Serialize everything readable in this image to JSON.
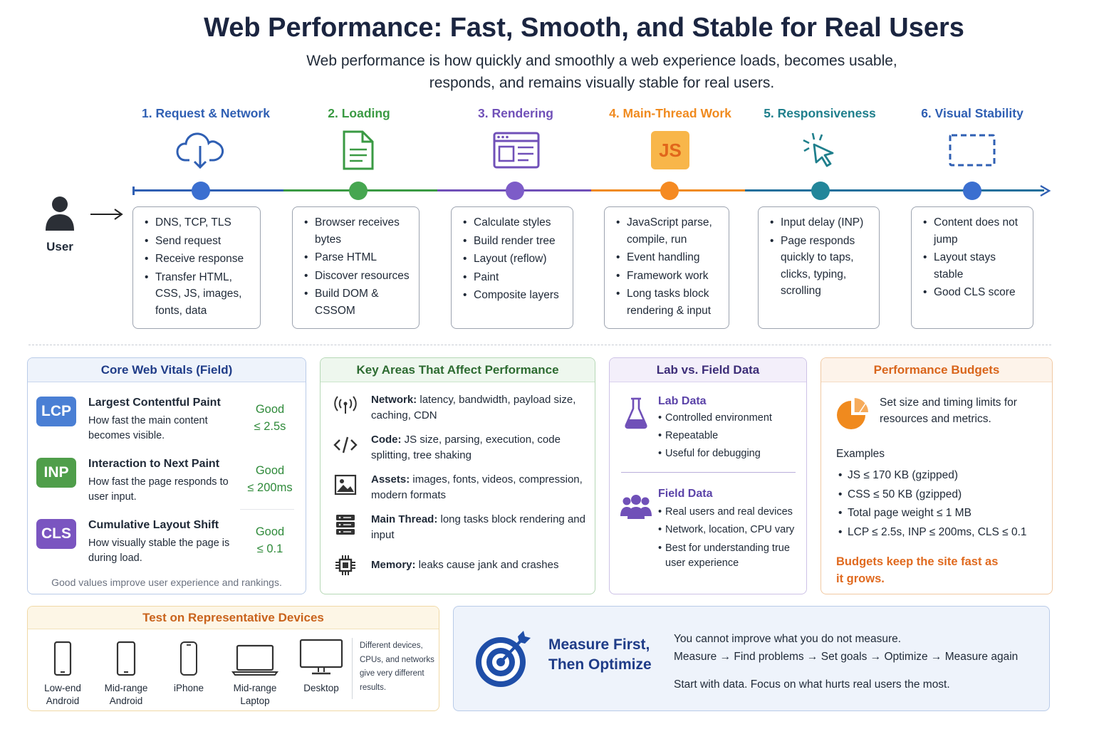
{
  "header": {
    "title": "Web Performance: Fast, Smooth, and Stable for Real Users",
    "subtitle_line1": "Web performance is how quickly and smoothly a web experience loads, becomes usable,",
    "subtitle_line2": "responds, and remains visually stable for real users."
  },
  "user": {
    "label": "User"
  },
  "stages": [
    {
      "title": "1. Request & Network",
      "color": "#2f5fb3",
      "icon": "cloud-download-icon",
      "items": [
        "DNS, TCP, TLS",
        "Send request",
        "Receive response",
        "Transfer HTML, CSS, JS, images, fonts, data"
      ]
    },
    {
      "title": "2. Loading",
      "color": "#3a9a43",
      "icon": "document-icon",
      "items": [
        "Browser receives bytes",
        "Parse HTML",
        "Discover resources",
        "Build DOM & CSSOM"
      ]
    },
    {
      "title": "3. Rendering",
      "color": "#7050b8",
      "icon": "browser-layout-icon",
      "items": [
        "Calculate styles",
        "Build render tree",
        "Layout (reflow)",
        "Paint",
        "Composite layers"
      ]
    },
    {
      "title": "4. Main-Thread Work",
      "color": "#f08a1e",
      "icon": "js-icon",
      "icon_text": "JS",
      "items": [
        "JavaScript parse, compile, run",
        "Event handling",
        "Framework work",
        "Long tasks block rendering & input"
      ]
    },
    {
      "title": "5. Responsiveness",
      "color": "#1f7f8c",
      "icon": "cursor-click-icon",
      "items": [
        "Input delay (INP)",
        "Page responds quickly to taps, clicks, typing, scrolling"
      ]
    },
    {
      "title": "6. Visual Stability",
      "color": "#2f5fb3",
      "icon": "dashed-frame-icon",
      "items": [
        "Content does not jump",
        "Layout stays stable",
        "Good CLS score"
      ]
    }
  ],
  "core_web_vitals": {
    "title": "Core Web Vitals (Field)",
    "metrics": [
      {
        "badge": "LCP",
        "name": "Largest Contentful Paint",
        "desc": "How fast the main content becomes visible.",
        "good": "Good",
        "threshold": "≤ 2.5s",
        "color": "#4a7fd4"
      },
      {
        "badge": "INP",
        "name": "Interaction to Next Paint",
        "desc": "How fast the page responds to user input.",
        "good": "Good",
        "threshold": "≤ 200ms",
        "color": "#4f9e4a"
      },
      {
        "badge": "CLS",
        "name": "Cumulative Layout Shift",
        "desc": "How visually stable the page is during load.",
        "good": "Good",
        "threshold": "≤ 0.1",
        "color": "#7a55c0"
      }
    ],
    "footer": "Good values improve user experience and rankings."
  },
  "key_areas": {
    "title": "Key Areas That Affect Performance",
    "items": [
      {
        "icon": "antenna-icon",
        "label": "Network:",
        "text": " latency, bandwidth, payload size, caching, CDN"
      },
      {
        "icon": "code-icon",
        "label": "Code:",
        "text": " JS size, parsing, execution, code splitting, tree shaking"
      },
      {
        "icon": "image-icon",
        "label": "Assets:",
        "text": " images, fonts, videos, compression, modern formats"
      },
      {
        "icon": "server-icon",
        "label": "Main Thread:",
        "text": " long tasks block rendering and input"
      },
      {
        "icon": "chip-icon",
        "label": "Memory:",
        "text": " leaks cause jank and crashes"
      }
    ]
  },
  "lab_field": {
    "title": "Lab vs. Field Data",
    "lab": {
      "title": "Lab Data",
      "icon": "flask-icon",
      "items": [
        "Controlled environment",
        "Repeatable",
        "Useful for debugging"
      ]
    },
    "field": {
      "title": "Field Data",
      "icon": "users-icon",
      "items": [
        "Real users and real devices",
        "Network, location, CPU vary",
        "Best for understanding true user experience"
      ]
    }
  },
  "budgets": {
    "title": "Performance Budgets",
    "icon": "pie-chart-icon",
    "text": "Set size and timing limits for resources and metrics.",
    "examples_label": "Examples",
    "examples": [
      "JS ≤ 170 KB (gzipped)",
      "CSS ≤ 50 KB (gzipped)",
      "Total page weight ≤ 1 MB",
      "LCP ≤ 2.5s, INP ≤ 200ms, CLS ≤ 0.1"
    ],
    "note": "Budgets keep the site fast as it grows."
  },
  "devices": {
    "title": "Test on Representative Devices",
    "items": [
      {
        "label": "Low-end Android",
        "icon": "phone-icon"
      },
      {
        "label": "Mid-range Android",
        "icon": "phone-icon"
      },
      {
        "label": "iPhone",
        "icon": "iphone-icon"
      },
      {
        "label": "Mid-range Laptop",
        "icon": "laptop-icon"
      },
      {
        "label": "Desktop",
        "icon": "desktop-icon"
      }
    ],
    "note": "Different devices, CPUs, and networks give very different results."
  },
  "measure": {
    "icon": "target-icon",
    "heading_line1": "Measure First,",
    "heading_line2": "Then Optimize",
    "line1": "You cannot improve what you do not measure.",
    "line2": "Measure → Find problems → Set goals → Optimize → Measure again",
    "line3": "Start with data. Focus on what hurts real users the most."
  },
  "colors": {
    "blue": "#2f5fb3",
    "green": "#3a9a43",
    "purple": "#7050b8",
    "orange": "#f08a1e",
    "teal": "#1f7f8c"
  }
}
